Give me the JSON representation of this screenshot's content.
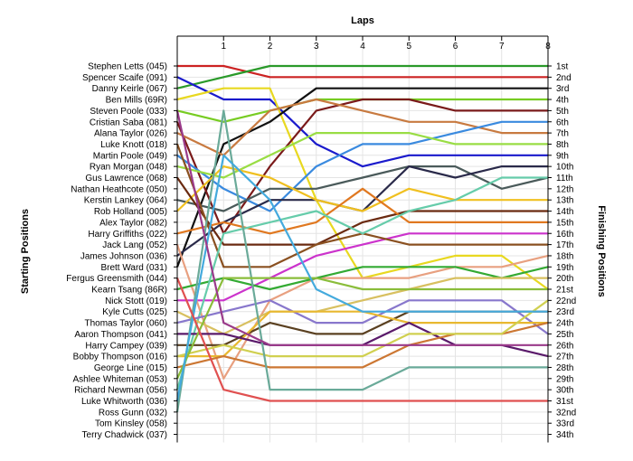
{
  "chart_data": {
    "type": "line",
    "title": "",
    "xlabel": "Laps",
    "ylabel_left": "Starting Positions",
    "ylabel_right": "Finishing Positions",
    "x_ticks": [
      1,
      2,
      3,
      4,
      5,
      6,
      7,
      8
    ],
    "xlim": [
      0,
      8
    ],
    "ylim": [
      1,
      34
    ],
    "grid": true,
    "drivers": [
      "Stephen Letts (045)",
      "Spencer Scaife (091)",
      "Danny Keirle (067)",
      "Ben Mills (69R)",
      "Steven Poole (033)",
      "Cristian Saba (081)",
      "Alana Taylor (026)",
      "Luke Knott (018)",
      "Martin Poole (049)",
      "Ryan Morgan (048)",
      "Gus Lawrence (068)",
      "Nathan Heathcote (050)",
      "Kerstin Lankey (064)",
      "Rob Holland (005)",
      "Alex Taylor (082)",
      "Harry Griffiths (022)",
      "Jack Lang (052)",
      "James Johnson (036)",
      "Brett Ward (031)",
      "Fergus Greensmith (044)",
      "Kearn Tsang (86R)",
      "Nick Stott (019)",
      "Kyle Cutts (025)",
      "Thomas Taylor (060)",
      "Aaron Thompson (041)",
      "Harry Campey (039)",
      "Bobby Thompson (016)",
      "George Line (015)",
      "Ashlee Whiteman (053)",
      "Richard Newman (056)",
      "Luke Whitworth (036)",
      "Ross Gunn (032)",
      "Tom Kinsley (058)",
      "Terry Chadwick (037)"
    ],
    "finishing_labels": [
      "1st",
      "2nd",
      "3rd",
      "4th",
      "5th",
      "6th",
      "7th",
      "8th",
      "9th",
      "10th",
      "11th",
      "12th",
      "13th",
      "14th",
      "15th",
      "16th",
      "17th",
      "18th",
      "19th",
      "20th",
      "21st",
      "22nd",
      "23rd",
      "24th",
      "25th",
      "26th",
      "27th",
      "28th",
      "29th",
      "30th",
      "31st",
      "32nd",
      "33rd",
      "34th"
    ],
    "series": [
      {
        "color": "#cc2222",
        "positions": [
          1,
          1,
          2,
          2,
          2,
          2,
          2,
          2,
          2
        ]
      },
      {
        "color": "#2a9a2a",
        "positions": [
          3,
          2,
          1,
          1,
          1,
          1,
          1,
          1,
          1
        ]
      },
      {
        "color": "#1a1acc",
        "positions": [
          2,
          4,
          4,
          8,
          10,
          9,
          9,
          9,
          9
        ]
      },
      {
        "color": "#e8d820",
        "positions": [
          4,
          3,
          3,
          13,
          20,
          19,
          18,
          18,
          21
        ]
      },
      {
        "color": "#77cc22",
        "positions": [
          5,
          6,
          5,
          4,
          4,
          4,
          4,
          4,
          4
        ]
      },
      {
        "color": "#111111",
        "positions": [
          19,
          8,
          6,
          3,
          3,
          3,
          3,
          3,
          3
        ]
      },
      {
        "color": "#7a1a1a",
        "positions": [
          6,
          16,
          10,
          5,
          4,
          4,
          5,
          5,
          5
        ]
      },
      {
        "color": "#c87a40",
        "positions": [
          7,
          9,
          5,
          4,
          5,
          6,
          6,
          7,
          7
        ]
      },
      {
        "color": "#3a8adf",
        "positions": [
          9,
          12,
          14,
          10,
          8,
          8,
          7,
          6,
          6
        ]
      },
      {
        "color": "#99dd44",
        "positions": [
          10,
          11,
          9,
          7,
          7,
          7,
          8,
          8,
          8
        ]
      },
      {
        "color": "#4a5a5a",
        "positions": [
          13,
          14,
          12,
          12,
          11,
          10,
          10,
          12,
          11
        ]
      },
      {
        "color": "#2a2a4a",
        "positions": [
          18,
          15,
          13,
          13,
          14,
          10,
          11,
          10,
          10
        ]
      },
      {
        "color": "#f0c020",
        "positions": [
          14,
          10,
          11,
          13,
          14,
          12,
          13,
          13,
          13
        ]
      },
      {
        "color": "#6a2a10",
        "positions": [
          11,
          17,
          17,
          17,
          15,
          14,
          14,
          14,
          14
        ]
      },
      {
        "color": "#e07820",
        "positions": [
          16,
          15,
          16,
          15,
          12,
          15,
          15,
          15,
          15
        ]
      },
      {
        "color": "#cc33cc",
        "positions": [
          22,
          22,
          20,
          18,
          17,
          16,
          16,
          16,
          16
        ]
      },
      {
        "color": "#8a5020",
        "positions": [
          8,
          19,
          19,
          17,
          16,
          17,
          17,
          17,
          17
        ]
      },
      {
        "color": "#e8a080",
        "positions": [
          17,
          29,
          22,
          20,
          20,
          20,
          19,
          19,
          18
        ]
      },
      {
        "color": "#33aa33",
        "positions": [
          21,
          20,
          21,
          20,
          19,
          19,
          19,
          20,
          19
        ]
      },
      {
        "color": "#66ccaa",
        "positions": [
          30,
          16,
          15,
          14,
          16,
          14,
          13,
          11,
          11
        ]
      },
      {
        "color": "#d8c060",
        "positions": [
          23,
          25,
          23,
          23,
          22,
          21,
          20,
          20,
          20
        ]
      },
      {
        "color": "#8877cc",
        "positions": [
          24,
          23,
          22,
          24,
          24,
          22,
          22,
          22,
          25
        ]
      },
      {
        "color": "#5a4020",
        "positions": [
          26,
          26,
          24,
          25,
          25,
          23,
          23,
          23,
          23
        ]
      },
      {
        "color": "#e8b830",
        "positions": [
          27,
          27,
          23,
          23,
          23,
          24,
          24,
          24,
          24
        ]
      },
      {
        "color": "#5a1a6a",
        "positions": [
          25,
          25,
          26,
          26,
          26,
          24,
          26,
          26,
          27
        ]
      },
      {
        "color": "#cc7733",
        "positions": [
          28,
          27,
          28,
          28,
          28,
          26,
          25,
          25,
          24
        ]
      },
      {
        "color": "#d0d050",
        "positions": [
          27,
          26,
          27,
          27,
          27,
          25,
          25,
          25,
          22
        ]
      },
      {
        "color": "#6aaa99",
        "positions": [
          32,
          5,
          30,
          30,
          30,
          28,
          28,
          28,
          28
        ]
      },
      {
        "color": "#8abd3a",
        "positions": [
          29,
          20,
          20,
          20,
          21,
          21,
          21,
          21,
          21
        ]
      },
      {
        "color": "#44aadd",
        "positions": [
          31,
          9,
          13,
          21,
          23,
          23,
          23,
          23,
          23
        ]
      },
      {
        "color": "#e05050",
        "positions": [
          20,
          30,
          31,
          31,
          31,
          31,
          31,
          31,
          31
        ]
      },
      {
        "color": "#9a3a8a",
        "positions": [
          5,
          24,
          26,
          26,
          26,
          26,
          26,
          26,
          26
        ]
      }
    ]
  }
}
